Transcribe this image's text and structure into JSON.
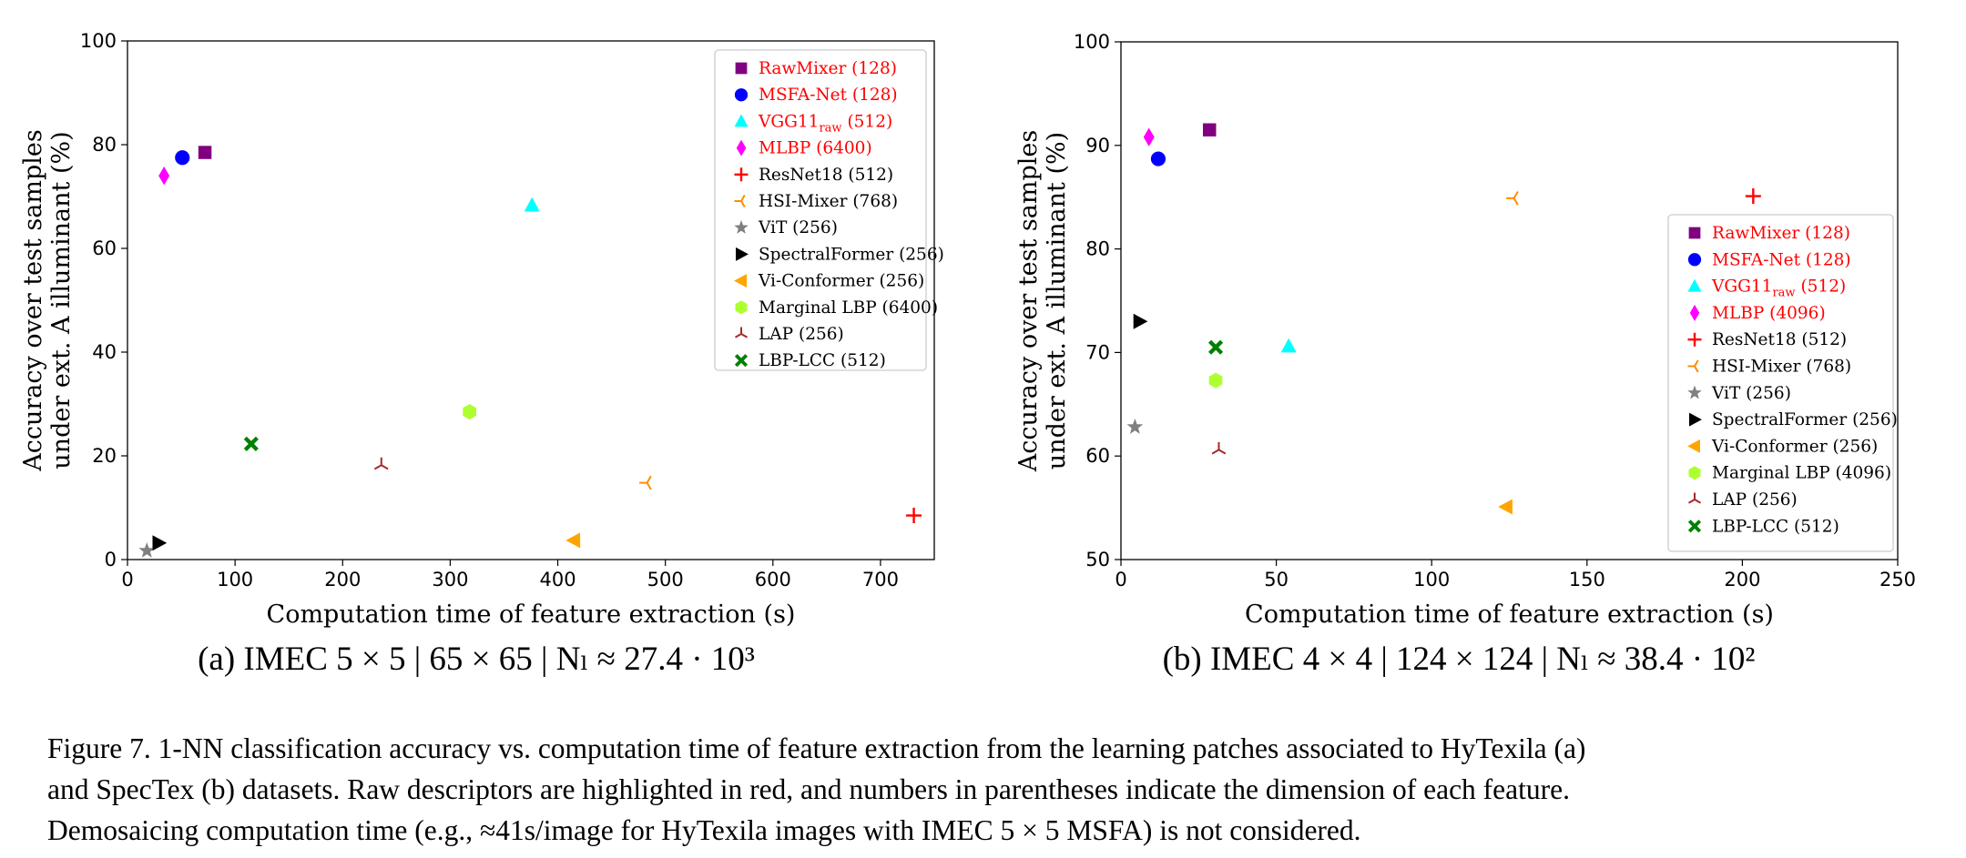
{
  "chart_data": [
    {
      "type": "scatter",
      "subtitle": "(a) IMEC 5 × 5 | 65 × 65 | Nₗ ≈ 27.4 · 10³",
      "xlabel": "Computation time of feature extraction (s)",
      "ylabel": [
        "Accuracy over test samples",
        "under ext. A illuminant (%)"
      ],
      "xlim": [
        0,
        750
      ],
      "ylim": [
        0,
        100
      ],
      "xticks": [
        0,
        100,
        200,
        300,
        400,
        500,
        600,
        700
      ],
      "yticks": [
        0,
        20,
        40,
        60,
        80,
        100
      ],
      "grid": false,
      "legend_position": "top-right",
      "series": [
        {
          "name": "RawMixer (128)",
          "x": 72,
          "y": 78.5,
          "marker": "square",
          "color": "#800080",
          "raw": true
        },
        {
          "name": "MSFA-Net (128)",
          "x": 51,
          "y": 77.5,
          "marker": "circle",
          "color": "#0000ff",
          "raw": true
        },
        {
          "name": "VGG11raw (512)",
          "x": 376,
          "y": 68.3,
          "marker": "triangle-up",
          "color": "#00ffff",
          "raw": true
        },
        {
          "name": "MLBP (6400)",
          "x": 34,
          "y": 74,
          "marker": "diamond",
          "color": "#ff00ff",
          "raw": true
        },
        {
          "name": "ResNet18 (512)",
          "x": 731,
          "y": 8.5,
          "marker": "plus",
          "color": "#ff0000",
          "raw": false
        },
        {
          "name": "HSI-Mixer (768)",
          "x": 483,
          "y": 14.8,
          "marker": "tri-right",
          "color": "#ff8c00",
          "raw": false
        },
        {
          "name": "ViT (256)",
          "x": 18,
          "y": 1.7,
          "marker": "star",
          "color": "#808080",
          "raw": false
        },
        {
          "name": "SpectralFormer (256)",
          "x": 29,
          "y": 3.2,
          "marker": "triangle-right",
          "color": "#000000",
          "raw": false
        },
        {
          "name": "Vi-Conformer (256)",
          "x": 415,
          "y": 3.7,
          "marker": "triangle-left",
          "color": "#ffa500",
          "raw": false
        },
        {
          "name": "Marginal LBP (6400)",
          "x": 318,
          "y": 28.5,
          "marker": "hexagon",
          "color": "#adff2f",
          "raw": false
        },
        {
          "name": "LAP (256)",
          "x": 236,
          "y": 18.2,
          "marker": "tri-down",
          "color": "#a52a2a",
          "raw": false
        },
        {
          "name": "LBP-LCC (512)",
          "x": 115,
          "y": 22.3,
          "marker": "x-filled",
          "color": "#008000",
          "raw": false
        }
      ]
    },
    {
      "type": "scatter",
      "subtitle": "(b) IMEC 4 × 4 | 124 × 124 | Nₗ ≈ 38.4 · 10²",
      "xlabel": "Computation time of feature extraction (s)",
      "ylabel": [
        "Accuracy over test samples",
        "under ext. A illuminant (%)"
      ],
      "xlim": [
        0,
        250
      ],
      "ylim": [
        50,
        100
      ],
      "xticks": [
        0,
        50,
        100,
        150,
        200,
        250
      ],
      "yticks": [
        50,
        60,
        70,
        80,
        90,
        100
      ],
      "grid": false,
      "legend_position": "center-right",
      "series": [
        {
          "name": "RawMixer (128)",
          "x": 28.5,
          "y": 91.5,
          "marker": "square",
          "color": "#800080",
          "raw": true
        },
        {
          "name": "MSFA-Net (128)",
          "x": 12,
          "y": 88.7,
          "marker": "circle",
          "color": "#0000ff",
          "raw": true
        },
        {
          "name": "VGG11raw (512)",
          "x": 54,
          "y": 70.6,
          "marker": "triangle-up",
          "color": "#00ffff",
          "raw": true
        },
        {
          "name": "MLBP (4096)",
          "x": 9,
          "y": 90.8,
          "marker": "diamond",
          "color": "#ff00ff",
          "raw": true
        },
        {
          "name": "ResNet18 (512)",
          "x": 203.5,
          "y": 85.1,
          "marker": "plus",
          "color": "#ff0000",
          "raw": false
        },
        {
          "name": "HSI-Mixer (768)",
          "x": 126.5,
          "y": 84.9,
          "marker": "tri-right",
          "color": "#ff8c00",
          "raw": false
        },
        {
          "name": "ViT (256)",
          "x": 4.5,
          "y": 62.8,
          "marker": "star",
          "color": "#808080",
          "raw": false
        },
        {
          "name": "SpectralFormer (256)",
          "x": 6,
          "y": 73,
          "marker": "triangle-right",
          "color": "#000000",
          "raw": false
        },
        {
          "name": "Vi-Conformer (256)",
          "x": 124,
          "y": 55.1,
          "marker": "triangle-left",
          "color": "#ffa500",
          "raw": false
        },
        {
          "name": "Marginal LBP (4096)",
          "x": 30.5,
          "y": 67.3,
          "marker": "hexagon",
          "color": "#adff2f",
          "raw": false
        },
        {
          "name": "LAP (256)",
          "x": 31.5,
          "y": 60.6,
          "marker": "tri-down",
          "color": "#a52a2a",
          "raw": false
        },
        {
          "name": "LBP-LCC (512)",
          "x": 30.5,
          "y": 70.5,
          "marker": "x-filled",
          "color": "#008000",
          "raw": false
        }
      ]
    }
  ],
  "caption": [
    "Figure 7. 1-NN classification accuracy vs. computation time of feature extraction from the learning patches associated to HyTexila (a)",
    "and SpecTex (b) datasets. Raw descriptors are highlighted in red, and numbers in parentheses indicate the dimension of each feature.",
    "Demosaicing computation time (e.g., ≈41s/image for HyTexila images with IMEC 5 × 5 MSFA) is not considered."
  ],
  "colors": {
    "raw_label": "#ff0000",
    "text": "#000000",
    "axis": "#000000"
  }
}
